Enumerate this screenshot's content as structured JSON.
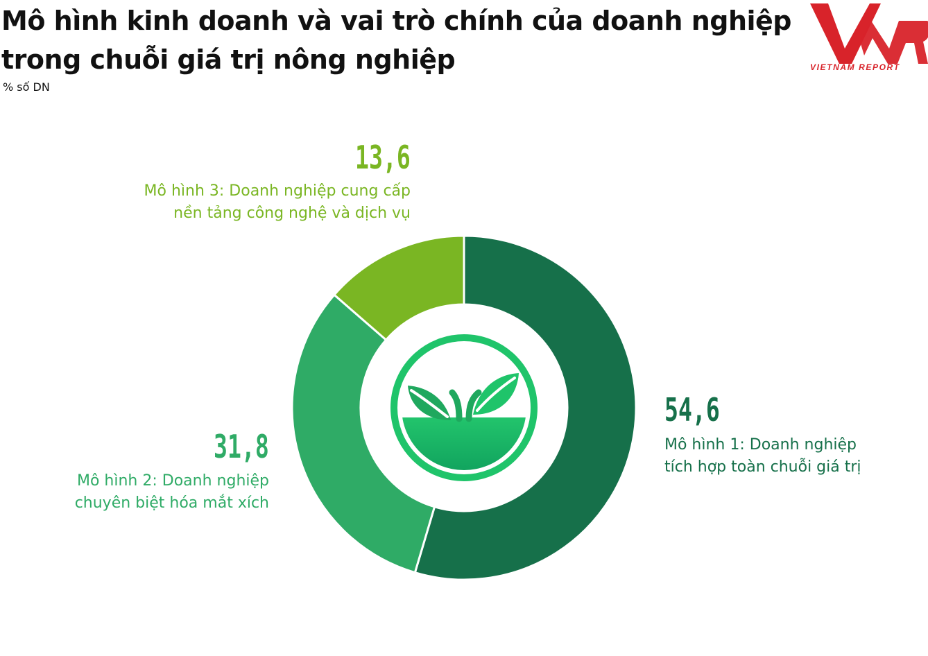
{
  "title": "Mô hình kinh doanh và vai trò chính của doanh nghiệp trong chuỗi giá trị nông nghiệp",
  "subtitle": "% số DN",
  "logo": {
    "text": "VNR",
    "caption": "VIETNAM REPORT",
    "color": "#d8232a"
  },
  "center_icon": "sprout-icon",
  "chart_data": {
    "type": "pie",
    "style": "donut",
    "title": "Mô hình kinh doanh và vai trò chính của doanh nghiệp trong chuỗi giá trị nông nghiệp",
    "unit": "% số DN",
    "categories": [
      "Mô hình 1: Doanh nghiệp tích hợp toàn chuỗi giá trị",
      "Mô hình 2: Doanh nghiệp chuyên biệt hóa mắt xích",
      "Mô hình 3: Doanh nghiệp cung cấp nền tảng công nghệ và dịch vụ"
    ],
    "values": [
      54.6,
      31.8,
      13.6
    ],
    "value_labels": [
      "54,6",
      "31,8",
      "13,6"
    ],
    "label_lines": [
      [
        "Mô hình 1: Doanh nghiệp",
        "tích hợp toàn chuỗi giá trị"
      ],
      [
        "Mô hình 2: Doanh nghiệp",
        "chuyên biệt hóa mắt xích"
      ],
      [
        "Mô hình 3: Doanh nghiệp cung cấp",
        "nền tảng công nghệ và dịch vụ"
      ]
    ],
    "colors": [
      "#16704a",
      "#2fab66",
      "#7ab623"
    ],
    "legend": "none"
  }
}
